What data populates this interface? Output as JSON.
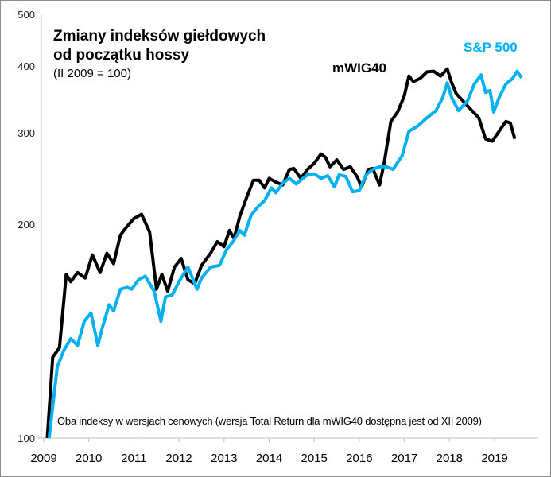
{
  "chart_data": {
    "type": "line",
    "title": "Zmiany indeksów giełdowych od początku hossy",
    "subtitle": "(II 2009 = 100)",
    "note": "Oba indeksy w wersjach cenowych (wersja Total Return dla mWIG40 dostępna jest od XII 2009)",
    "xlabel": "",
    "ylabel": "",
    "y_scale": "log",
    "y_ticks": [
      100,
      200,
      300,
      400,
      500
    ],
    "x_ticks": [
      "2009",
      "2010",
      "2011",
      "2012",
      "2013",
      "2014",
      "2015",
      "2016",
      "2017",
      "2018",
      "2019"
    ],
    "xlim": [
      2009,
      2020.1
    ],
    "ylim": [
      100,
      500
    ],
    "grid": false,
    "series": [
      {
        "name": "mWIG40",
        "color": "#000000",
        "x": [
          2009.08,
          2009.2,
          2009.35,
          2009.5,
          2009.6,
          2009.75,
          2009.92,
          2010.08,
          2010.25,
          2010.4,
          2010.55,
          2010.7,
          2010.83,
          2011.0,
          2011.17,
          2011.35,
          2011.5,
          2011.62,
          2011.75,
          2011.9,
          2012.05,
          2012.2,
          2012.35,
          2012.5,
          2012.7,
          2012.85,
          2013.0,
          2013.12,
          2013.22,
          2013.35,
          2013.5,
          2013.65,
          2013.78,
          2013.9,
          2014.0,
          2014.15,
          2014.3,
          2014.45,
          2014.55,
          2014.7,
          2014.85,
          2015.0,
          2015.15,
          2015.25,
          2015.35,
          2015.5,
          2015.65,
          2015.8,
          2015.95,
          2016.05,
          2016.2,
          2016.3,
          2016.45,
          2016.55,
          2016.7,
          2016.85,
          2017.0,
          2017.1,
          2017.2,
          2017.35,
          2017.5,
          2017.65,
          2017.8,
          2017.95,
          2018.05,
          2018.15,
          2018.3,
          2018.5,
          2018.65,
          2018.8,
          2018.95,
          2019.1,
          2019.25,
          2019.35,
          2019.45
        ],
        "values": [
          100,
          130,
          134,
          170,
          166,
          171,
          168,
          181,
          171,
          182,
          176,
          193,
          198,
          205,
          209,
          195,
          162,
          170,
          161,
          174,
          179,
          167,
          165,
          175,
          182,
          189,
          186,
          196,
          191,
          207,
          225,
          243,
          243,
          235,
          245,
          241,
          238,
          255,
          256,
          245,
          255,
          262,
          273,
          269,
          258,
          266,
          255,
          258,
          247,
          236,
          255,
          256,
          238,
          262,
          315,
          328,
          352,
          383,
          374,
          379,
          390,
          391,
          383,
          395,
          372,
          355,
          344,
          330,
          320,
          292,
          289,
          302,
          315,
          313,
          292
        ]
      },
      {
        "name": "S&P 500",
        "color": "#00b0f0",
        "x": [
          2009.12,
          2009.3,
          2009.45,
          2009.6,
          2009.75,
          2009.9,
          2010.05,
          2010.2,
          2010.3,
          2010.45,
          2010.55,
          2010.7,
          2010.85,
          2010.95,
          2011.1,
          2011.25,
          2011.45,
          2011.6,
          2011.7,
          2011.85,
          2012.0,
          2012.2,
          2012.4,
          2012.5,
          2012.7,
          2012.9,
          2013.05,
          2013.2,
          2013.35,
          2013.45,
          2013.6,
          2013.75,
          2013.9,
          2014.05,
          2014.15,
          2014.3,
          2014.45,
          2014.6,
          2014.75,
          2014.85,
          2015.0,
          2015.15,
          2015.3,
          2015.45,
          2015.55,
          2015.7,
          2015.85,
          2016.0,
          2016.15,
          2016.3,
          2016.45,
          2016.6,
          2016.75,
          2016.95,
          2017.1,
          2017.3,
          2017.5,
          2017.7,
          2017.85,
          2017.95,
          2018.05,
          2018.2,
          2018.4,
          2018.55,
          2018.7,
          2018.8,
          2018.9,
          2018.98,
          2019.1,
          2019.25,
          2019.4,
          2019.5,
          2019.6
        ],
        "values": [
          100,
          126,
          133,
          138,
          135,
          146,
          150,
          135,
          143,
          154,
          151,
          162,
          163,
          162,
          167,
          169,
          161,
          146,
          158,
          159,
          166,
          174,
          162,
          168,
          174,
          175,
          184,
          189,
          196,
          193,
          208,
          216,
          222,
          235,
          230,
          240,
          245,
          239,
          245,
          249,
          250,
          245,
          248,
          236,
          249,
          247,
          231,
          232,
          249,
          255,
          258,
          258,
          255,
          271,
          302,
          309,
          320,
          330,
          349,
          372,
          349,
          330,
          344,
          370,
          385,
          357,
          360,
          328,
          349,
          370,
          379,
          391,
          380
        ]
      }
    ]
  }
}
